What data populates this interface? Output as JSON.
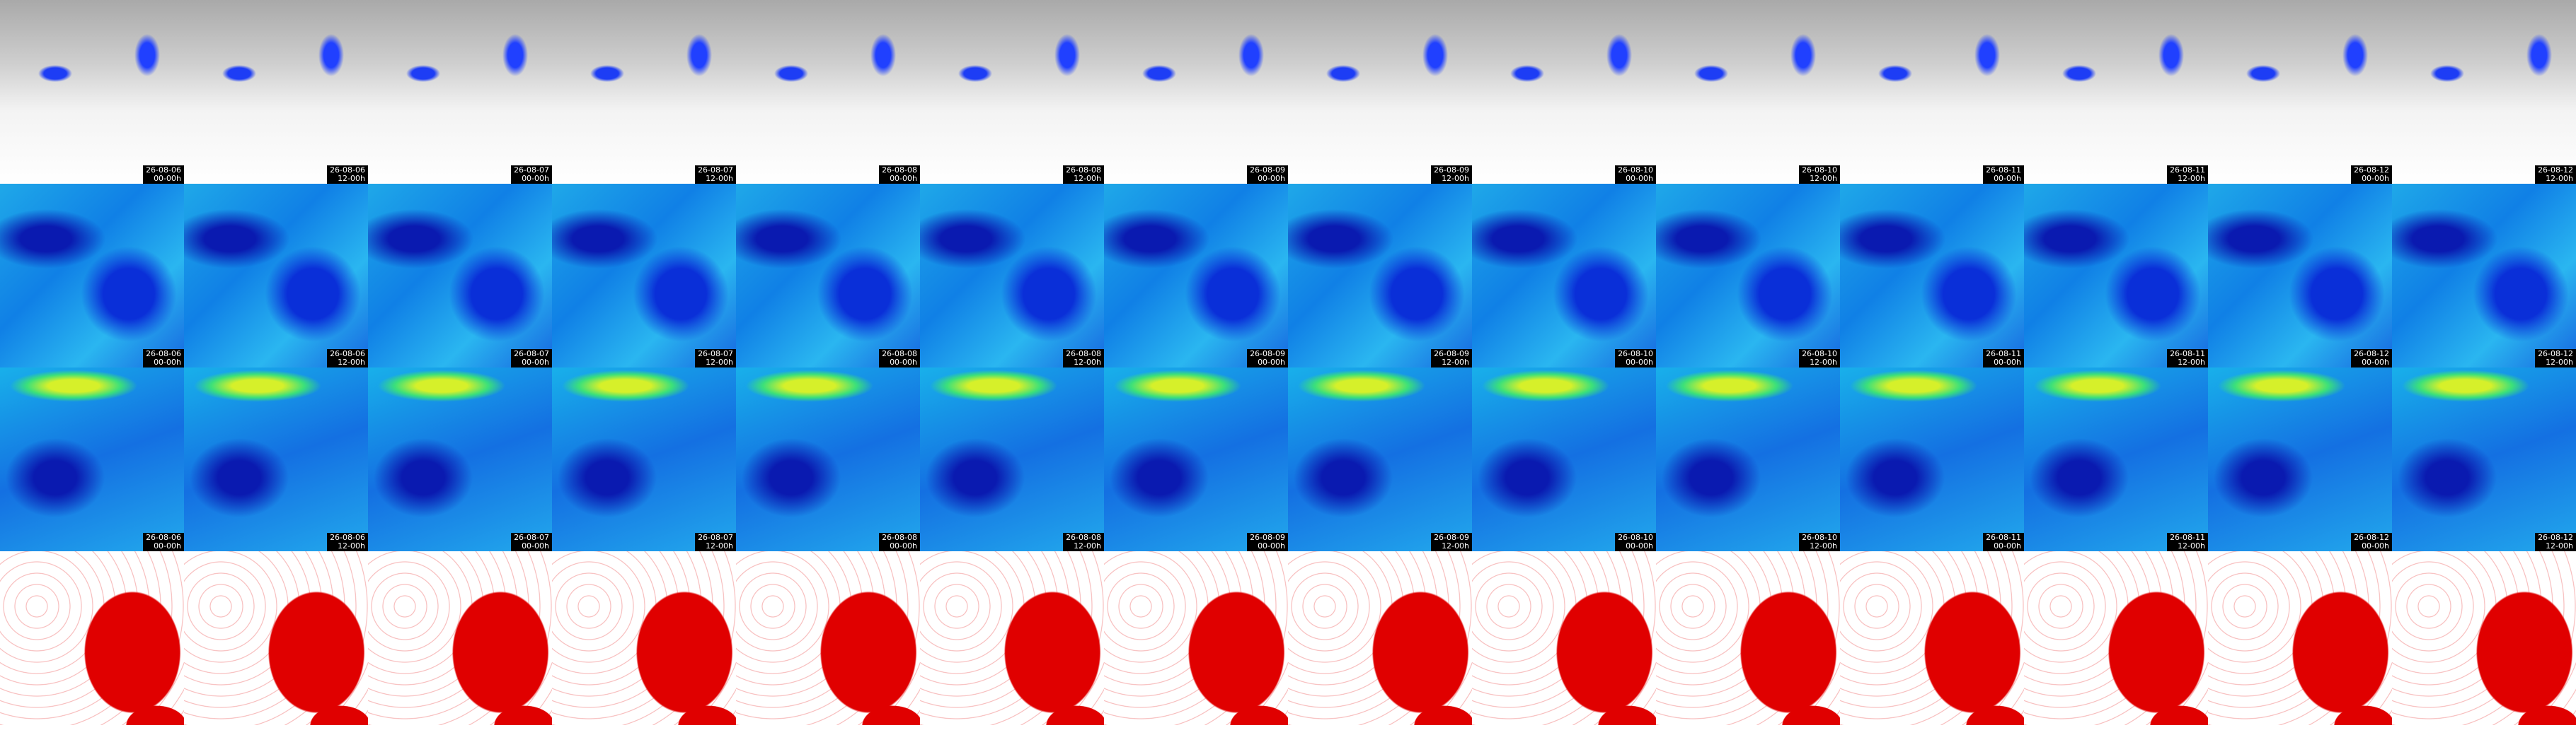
{
  "columns": [
    {
      "date": "26-08-06",
      "time": "00-00h"
    },
    {
      "date": "26-08-06",
      "time": "12-00h"
    },
    {
      "date": "26-08-07",
      "time": "00-00h"
    },
    {
      "date": "26-08-07",
      "time": "12-00h"
    },
    {
      "date": "26-08-08",
      "time": "00-00h"
    },
    {
      "date": "26-08-08",
      "time": "12-00h"
    },
    {
      "date": "26-08-09",
      "time": "00-00h"
    },
    {
      "date": "26-08-09",
      "time": "12-00h"
    },
    {
      "date": "26-08-10",
      "time": "00-00h"
    },
    {
      "date": "26-08-10",
      "time": "12-00h"
    },
    {
      "date": "26-08-11",
      "time": "00-00h"
    },
    {
      "date": "26-08-11",
      "time": "12-00h"
    },
    {
      "date": "26-08-12",
      "time": "00-00h"
    },
    {
      "date": "26-08-12",
      "time": "12-00h"
    }
  ]
}
